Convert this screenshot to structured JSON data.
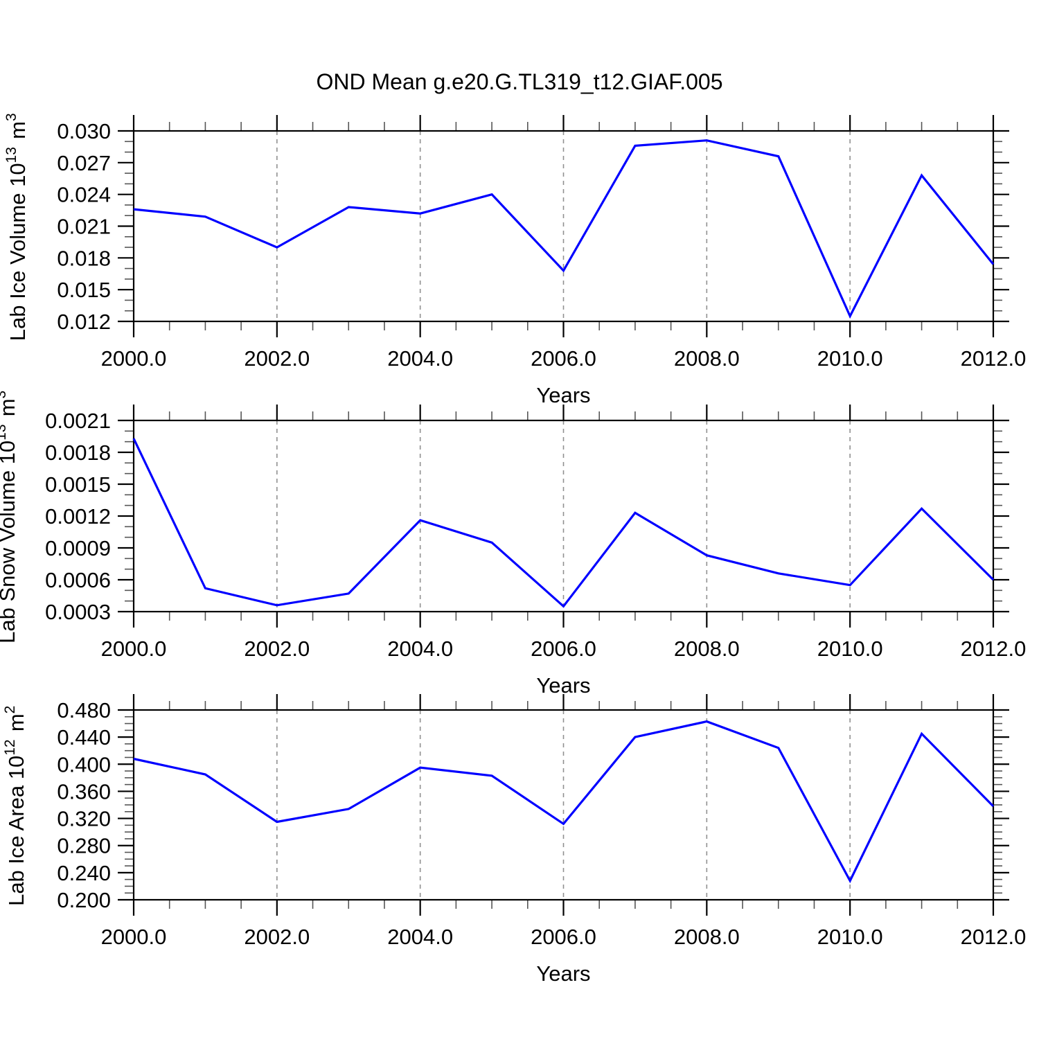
{
  "figure": {
    "title": "OND Mean g.e20.G.TL319_t12.GIAF.005",
    "line_color": "#0000ff",
    "background": "#ffffff"
  },
  "chart_data": [
    {
      "type": "line",
      "panel": "ice-volume",
      "title": "OND Mean g.e20.G.TL319_t12.GIAF.005",
      "x": [
        2000,
        2001,
        2002,
        2003,
        2004,
        2005,
        2006,
        2007,
        2008,
        2009,
        2010,
        2011,
        2012
      ],
      "series": [
        {
          "name": "Lab Ice Volume",
          "values": [
            0.0226,
            0.0219,
            0.019,
            0.0228,
            0.0222,
            0.024,
            0.0168,
            0.0286,
            0.0291,
            0.0276,
            0.0125,
            0.0258,
            0.0174
          ]
        }
      ],
      "xlabel": "Years",
      "ylabel": "Lab Ice Volume 10^13 m^3",
      "ylabel_parts": [
        {
          "text": "Lab Ice Volume 10"
        },
        {
          "sup": "13"
        },
        {
          "text": " m"
        },
        {
          "sup": "3"
        }
      ],
      "xlim": [
        2000,
        2012
      ],
      "ylim": [
        0.012,
        0.03
      ],
      "x_tick_values": [
        2000,
        2002,
        2004,
        2006,
        2008,
        2010,
        2012
      ],
      "x_tick_labels": [
        "2000.0",
        "2002.0",
        "2004.0",
        "2006.0",
        "2008.0",
        "2010.0",
        "2012.0"
      ],
      "x_minor_step": 0.5,
      "ytick_values": [
        0.03,
        0.027,
        0.024,
        0.021,
        0.018,
        0.015,
        0.012
      ],
      "ytick_labels": [
        "0.030",
        "0.027",
        "0.024",
        "0.021",
        "0.018",
        "0.015",
        "0.012"
      ],
      "y_minor_step": 0.001,
      "gridline_years": [
        2002,
        2004,
        2006,
        2008,
        2010
      ],
      "grid": "vertical-dashed",
      "legend": "none"
    },
    {
      "type": "line",
      "panel": "snow-volume",
      "title": "",
      "x": [
        2000,
        2001,
        2002,
        2003,
        2004,
        2005,
        2006,
        2007,
        2008,
        2009,
        2010,
        2011,
        2012
      ],
      "series": [
        {
          "name": "Lab Snow Volume",
          "values": [
            0.00193,
            0.00052,
            0.00036,
            0.00047,
            0.00116,
            0.00095,
            0.00035,
            0.00123,
            0.00083,
            0.00066,
            0.00055,
            0.00127,
            0.0006
          ]
        }
      ],
      "xlabel": "Years",
      "ylabel": "Lab Snow Volume 10^13 m^3",
      "ylabel_parts": [
        {
          "text": "Lab Snow Volume 10"
        },
        {
          "sup": "13"
        },
        {
          "text": " m"
        },
        {
          "sup": "3"
        }
      ],
      "xlim": [
        2000,
        2012
      ],
      "ylim": [
        0.0003,
        0.0021
      ],
      "x_tick_values": [
        2000,
        2002,
        2004,
        2006,
        2008,
        2010,
        2012
      ],
      "x_tick_labels": [
        "2000.0",
        "2002.0",
        "2004.0",
        "2006.0",
        "2008.0",
        "2010.0",
        "2012.0"
      ],
      "x_minor_step": 0.5,
      "ytick_values": [
        0.0021,
        0.0018,
        0.0015,
        0.0012,
        0.0009,
        0.0006,
        0.0003
      ],
      "ytick_labels": [
        "0.0021",
        "0.0018",
        "0.0015",
        "0.0012",
        "0.0009",
        "0.0006",
        "0.0003"
      ],
      "y_minor_step": 0.0001,
      "gridline_years": [
        2002,
        2004,
        2006,
        2008,
        2010
      ],
      "grid": "vertical-dashed",
      "legend": "none"
    },
    {
      "type": "line",
      "panel": "ice-area",
      "title": "",
      "x": [
        2000,
        2001,
        2002,
        2003,
        2004,
        2005,
        2006,
        2007,
        2008,
        2009,
        2010,
        2011,
        2012
      ],
      "series": [
        {
          "name": "Lab Ice Area",
          "values": [
            0.408,
            0.385,
            0.315,
            0.334,
            0.395,
            0.383,
            0.312,
            0.44,
            0.463,
            0.424,
            0.228,
            0.445,
            0.338
          ]
        }
      ],
      "xlabel": "Years",
      "ylabel": "Lab Ice Area 10^12 m^2",
      "ylabel_parts": [
        {
          "text": "Lab Ice Area 10"
        },
        {
          "sup": "12"
        },
        {
          "text": " m"
        },
        {
          "sup": "2"
        }
      ],
      "xlim": [
        2000,
        2012
      ],
      "ylim": [
        0.2,
        0.48
      ],
      "x_tick_values": [
        2000,
        2002,
        2004,
        2006,
        2008,
        2010,
        2012
      ],
      "x_tick_labels": [
        "2000.0",
        "2002.0",
        "2004.0",
        "2006.0",
        "2008.0",
        "2010.0",
        "2012.0"
      ],
      "x_minor_step": 0.5,
      "ytick_values": [
        0.48,
        0.44,
        0.4,
        0.36,
        0.32,
        0.28,
        0.24,
        0.2
      ],
      "ytick_labels": [
        "0.480",
        "0.440",
        "0.400",
        "0.360",
        "0.320",
        "0.280",
        "0.240",
        "0.200"
      ],
      "y_minor_step": 0.01,
      "gridline_years": [
        2002,
        2004,
        2006,
        2008,
        2010
      ],
      "grid": "vertical-dashed",
      "legend": "none"
    }
  ]
}
